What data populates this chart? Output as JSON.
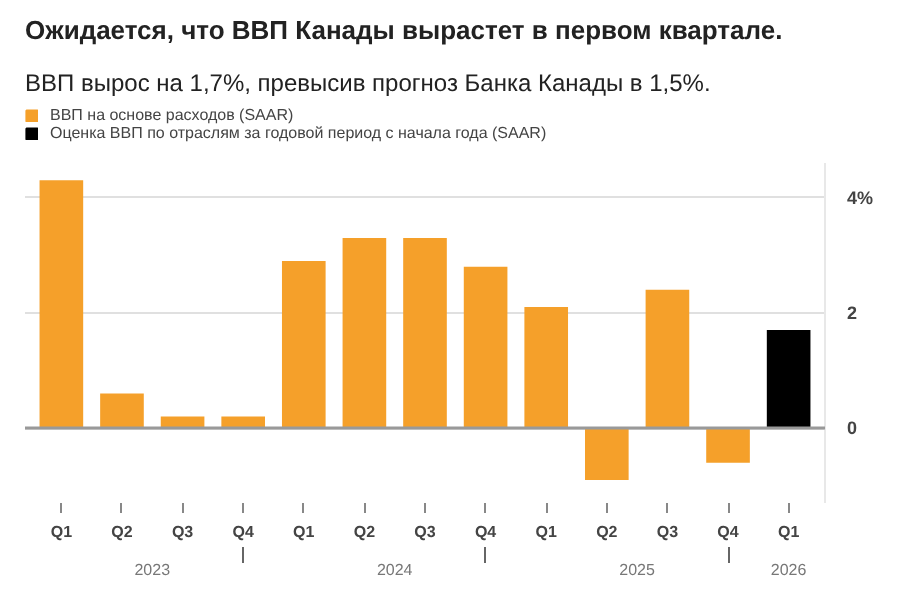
{
  "chart_data": {
    "type": "bar",
    "title": "Ожидается, что ВВП Канады вырастет в первом квартале.",
    "subtitle": "ВВП вырос на 1,7%, превысив прогноз Банка Канады в 1,5%.",
    "categories": [
      "Q1",
      "Q2",
      "Q3",
      "Q4",
      "Q1",
      "Q2",
      "Q3",
      "Q4",
      "Q1",
      "Q2",
      "Q3",
      "Q4",
      "Q1"
    ],
    "series": [
      {
        "name": "ВВП на основе расходов (SAAR)",
        "color": "#f5a02a",
        "values": [
          4.3,
          0.6,
          0.2,
          0.2,
          2.9,
          3.3,
          3.3,
          2.8,
          2.1,
          -0.9,
          2.4,
          -0.6,
          null
        ]
      },
      {
        "name": "Оценка ВВП по отраслям за годовой период с начала года (SAAR)",
        "color": "#000000",
        "values": [
          null,
          null,
          null,
          null,
          null,
          null,
          null,
          null,
          null,
          null,
          null,
          null,
          1.7
        ]
      }
    ],
    "annotations": [
      "2023",
      "2024",
      "2025",
      "2026"
    ],
    "ylim": [
      -1.3,
      4.6
    ],
    "yticks": [
      {
        "value": 0,
        "label": "0"
      },
      {
        "value": 2,
        "label": "2"
      },
      {
        "value": 4,
        "label": "4%"
      }
    ],
    "grid": "y",
    "legend": "top left"
  }
}
